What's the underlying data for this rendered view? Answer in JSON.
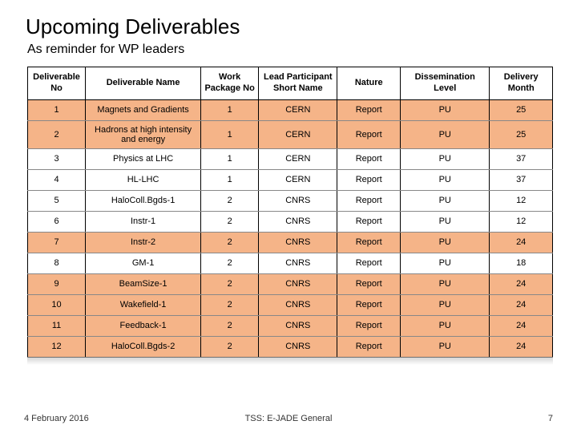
{
  "title": "Upcoming Deliverables",
  "subtitle": "As reminder for WP leaders",
  "table": {
    "columns": [
      "Deliverable No",
      "Deliverable Name",
      "Work Package No",
      "Lead Participant Short Name",
      "Nature",
      "Dissemination Level",
      "Delivery Month"
    ],
    "col_widths_pct": [
      11,
      22,
      11,
      15,
      12,
      17,
      12
    ],
    "rows": [
      {
        "hl": true,
        "cells": [
          "1",
          "Magnets and Gradients",
          "1",
          "CERN",
          "Report",
          "PU",
          "25"
        ]
      },
      {
        "hl": true,
        "cells": [
          "2",
          "Hadrons at high intensity and energy",
          "1",
          "CERN",
          "Report",
          "PU",
          "25"
        ]
      },
      {
        "hl": false,
        "cells": [
          "3",
          "Physics at LHC",
          "1",
          "CERN",
          "Report",
          "PU",
          "37"
        ]
      },
      {
        "hl": false,
        "cells": [
          "4",
          "HL-LHC",
          "1",
          "CERN",
          "Report",
          "PU",
          "37"
        ]
      },
      {
        "hl": false,
        "cells": [
          "5",
          "HaloColl.Bgds-1",
          "2",
          "CNRS",
          "Report",
          "PU",
          "12"
        ]
      },
      {
        "hl": false,
        "cells": [
          "6",
          "Instr-1",
          "2",
          "CNRS",
          "Report",
          "PU",
          "12"
        ]
      },
      {
        "hl": true,
        "cells": [
          "7",
          "Instr-2",
          "2",
          "CNRS",
          "Report",
          "PU",
          "24"
        ]
      },
      {
        "hl": false,
        "cells": [
          "8",
          "GM-1",
          "2",
          "CNRS",
          "Report",
          "PU",
          "18"
        ]
      },
      {
        "hl": true,
        "cells": [
          "9",
          "BeamSize-1",
          "2",
          "CNRS",
          "Report",
          "PU",
          "24"
        ]
      },
      {
        "hl": true,
        "cells": [
          "10",
          "Wakefield-1",
          "2",
          "CNRS",
          "Report",
          "PU",
          "24"
        ]
      },
      {
        "hl": true,
        "cells": [
          "11",
          "Feedback-1",
          "2",
          "CNRS",
          "Report",
          "PU",
          "24"
        ]
      },
      {
        "hl": true,
        "cells": [
          "12",
          "HaloColl.Bgds-2",
          "2",
          "CNRS",
          "Report",
          "PU",
          "24"
        ]
      }
    ],
    "highlight_color": "#f5b488"
  },
  "footer": {
    "date": "4 February 2016",
    "center": "TSS: E-JADE General",
    "page": "7"
  }
}
